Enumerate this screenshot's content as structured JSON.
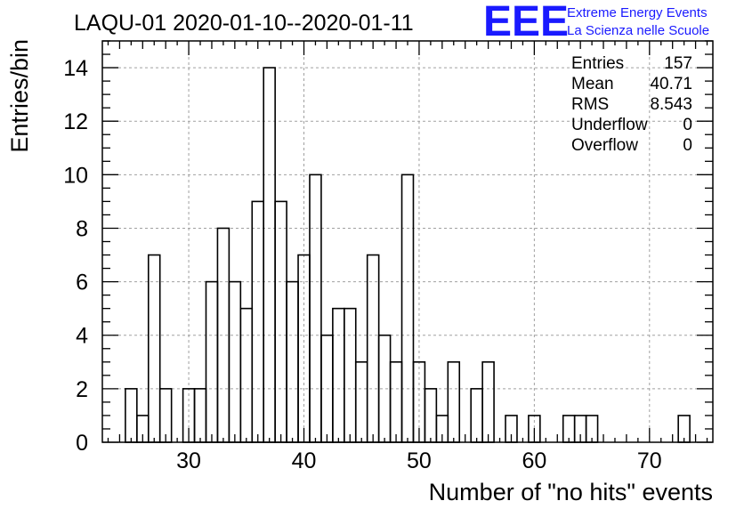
{
  "header": {
    "title": "LAQU-01 2020-01-10--2020-01-11",
    "logo_mark": "EEE",
    "logo_line1": "Extreme Energy Events",
    "logo_line2": "La Scienza nelle Scuole",
    "logo_color": "#1a1aff"
  },
  "stats": {
    "entries_label": "Entries",
    "entries_value": "157",
    "mean_label": "Mean",
    "mean_value": "40.71",
    "rms_label": "RMS",
    "rms_value": "8.543",
    "underflow_label": "Underflow",
    "underflow_value": "0",
    "overflow_label": "Overflow",
    "overflow_value": "0"
  },
  "chart_data": {
    "type": "histogram",
    "title": "LAQU-01 2020-01-10--2020-01-11",
    "xlabel": "Number of \"no hits\" events",
    "ylabel": "Entries/bin",
    "xlim": [
      22.5,
      75.5
    ],
    "ylim": [
      0,
      15
    ],
    "bin_width": 1,
    "grid": true,
    "x_ticks": [
      30,
      40,
      50,
      60,
      70
    ],
    "y_ticks": [
      0,
      2,
      4,
      6,
      8,
      10,
      12,
      14
    ],
    "bins": [
      {
        "x": 25,
        "count": 2
      },
      {
        "x": 26,
        "count": 1
      },
      {
        "x": 27,
        "count": 7
      },
      {
        "x": 28,
        "count": 2
      },
      {
        "x": 29,
        "count": 0
      },
      {
        "x": 30,
        "count": 2
      },
      {
        "x": 31,
        "count": 2
      },
      {
        "x": 32,
        "count": 6
      },
      {
        "x": 33,
        "count": 8
      },
      {
        "x": 34,
        "count": 6
      },
      {
        "x": 35,
        "count": 5
      },
      {
        "x": 36,
        "count": 9
      },
      {
        "x": 37,
        "count": 14
      },
      {
        "x": 38,
        "count": 9
      },
      {
        "x": 39,
        "count": 6
      },
      {
        "x": 40,
        "count": 7
      },
      {
        "x": 41,
        "count": 10
      },
      {
        "x": 42,
        "count": 4
      },
      {
        "x": 43,
        "count": 5
      },
      {
        "x": 44,
        "count": 5
      },
      {
        "x": 45,
        "count": 3
      },
      {
        "x": 46,
        "count": 7
      },
      {
        "x": 47,
        "count": 4
      },
      {
        "x": 48,
        "count": 3
      },
      {
        "x": 49,
        "count": 10
      },
      {
        "x": 50,
        "count": 3
      },
      {
        "x": 51,
        "count": 2
      },
      {
        "x": 52,
        "count": 1
      },
      {
        "x": 53,
        "count": 3
      },
      {
        "x": 54,
        "count": 0
      },
      {
        "x": 55,
        "count": 2
      },
      {
        "x": 56,
        "count": 3
      },
      {
        "x": 57,
        "count": 0
      },
      {
        "x": 58,
        "count": 1
      },
      {
        "x": 59,
        "count": 0
      },
      {
        "x": 60,
        "count": 1
      },
      {
        "x": 61,
        "count": 0
      },
      {
        "x": 62,
        "count": 0
      },
      {
        "x": 63,
        "count": 1
      },
      {
        "x": 64,
        "count": 1
      },
      {
        "x": 65,
        "count": 1
      },
      {
        "x": 66,
        "count": 0
      },
      {
        "x": 67,
        "count": 0
      },
      {
        "x": 68,
        "count": 0
      },
      {
        "x": 69,
        "count": 0
      },
      {
        "x": 70,
        "count": 0
      },
      {
        "x": 71,
        "count": 0
      },
      {
        "x": 72,
        "count": 0
      },
      {
        "x": 73,
        "count": 1
      }
    ]
  }
}
